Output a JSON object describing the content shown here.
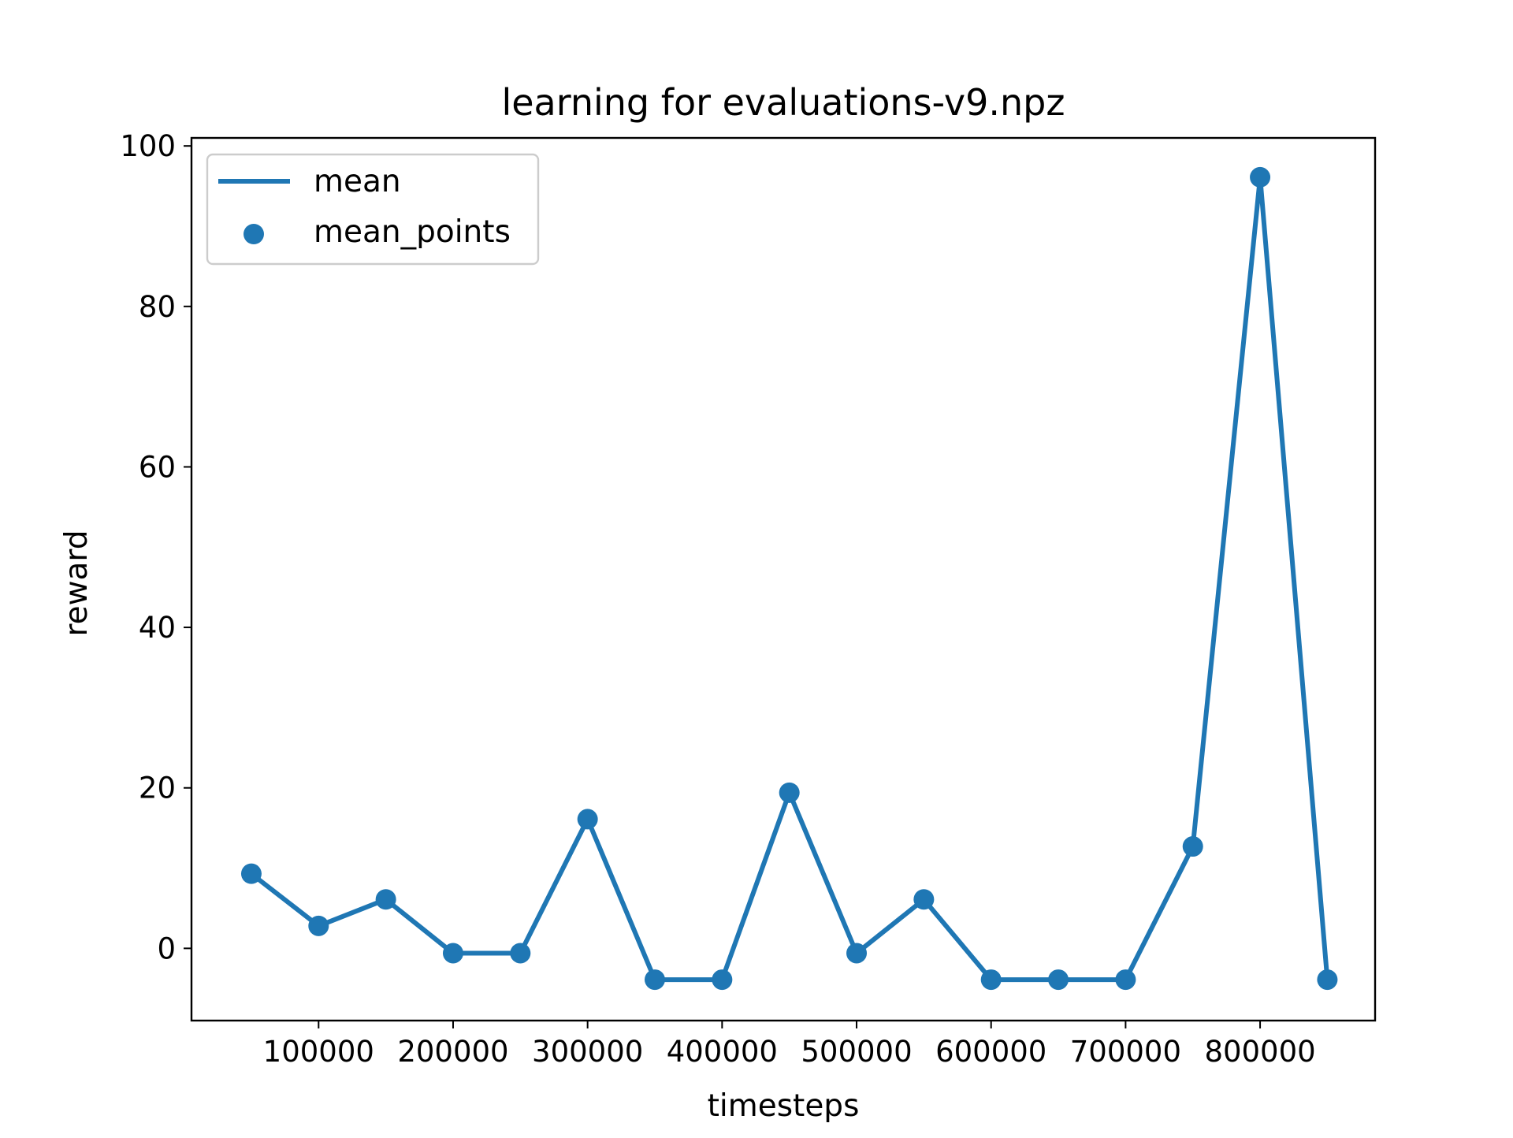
{
  "chart_data": {
    "type": "line",
    "title": "learning for evaluations-v9.npz",
    "xlabel": "timesteps",
    "ylabel": "reward",
    "x": [
      50000,
      100000,
      150000,
      200000,
      250000,
      300000,
      350000,
      400000,
      450000,
      500000,
      550000,
      600000,
      650000,
      700000,
      750000,
      800000,
      850000
    ],
    "series": [
      {
        "name": "mean",
        "values": [
          9.3,
          2.8,
          6.1,
          -0.6,
          -0.6,
          16.1,
          -3.9,
          -3.9,
          19.4,
          -0.6,
          6.1,
          -3.9,
          -3.9,
          -3.9,
          12.7,
          96.1,
          -3.9
        ]
      }
    ],
    "points_label": "mean_points",
    "xlim": [
      5500,
      885500
    ],
    "ylim": [
      -9.0,
      101.0
    ],
    "xticks": [
      100000,
      200000,
      300000,
      400000,
      500000,
      600000,
      700000,
      800000
    ],
    "xtick_labels": [
      "100000",
      "200000",
      "300000",
      "400000",
      "500000",
      "600000",
      "700000",
      "800000"
    ],
    "yticks": [
      0,
      20,
      40,
      60,
      80,
      100
    ],
    "ytick_labels": [
      "0",
      "20",
      "40",
      "60",
      "80",
      "100"
    ],
    "grid": false,
    "legend": "top-left",
    "color": "#1f77b4"
  }
}
